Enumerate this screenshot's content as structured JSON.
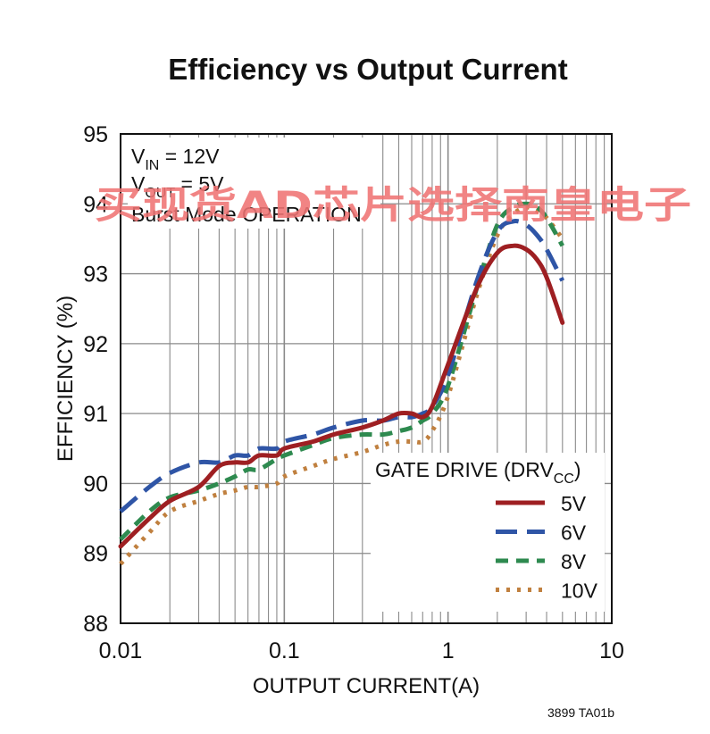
{
  "chart_data": {
    "type": "line",
    "title": "Efficiency vs Output Current",
    "xlabel": "OUTPUT CURRENT(A)",
    "ylabel": "EFFICIENCY (%)",
    "xscale": "log",
    "xlim": [
      0.01,
      10
    ],
    "ylim": [
      88,
      95
    ],
    "x_ticks": [
      "0.01",
      "0.1",
      "1",
      "10"
    ],
    "y_ticks": [
      "88",
      "89",
      "90",
      "91",
      "92",
      "93",
      "94",
      "95"
    ],
    "grid": true,
    "conditions": {
      "vin": {
        "main": "V",
        "sub": "IN",
        "rest": " = 12V"
      },
      "vout": {
        "main": "V",
        "sub": "OUT",
        "rest": " = 5V"
      },
      "mode": "Burst Mode OPERATION"
    },
    "legend": {
      "title_main": "GATE DRIVE (DRV",
      "title_sub": "CC",
      "title_end": ")",
      "placement": "lower-right"
    },
    "series": [
      {
        "name": "5V",
        "color": "#9e1f22",
        "dash": "solid",
        "x": [
          0.01,
          0.015,
          0.02,
          0.03,
          0.04,
          0.05,
          0.06,
          0.07,
          0.09,
          0.1,
          0.15,
          0.2,
          0.3,
          0.4,
          0.5,
          0.6,
          0.7,
          0.8,
          1.0,
          1.5,
          2.0,
          2.5,
          3.0,
          3.5,
          4.0,
          5.0
        ],
        "y": [
          89.1,
          89.5,
          89.75,
          89.95,
          90.25,
          90.3,
          90.3,
          90.4,
          90.4,
          90.5,
          90.6,
          90.7,
          90.8,
          90.9,
          91.0,
          91.0,
          90.95,
          91.1,
          91.7,
          92.8,
          93.3,
          93.4,
          93.35,
          93.2,
          92.95,
          92.3
        ]
      },
      {
        "name": "6V",
        "color": "#2f55a6",
        "dash": "long-dash",
        "x": [
          0.01,
          0.015,
          0.02,
          0.03,
          0.04,
          0.05,
          0.06,
          0.07,
          0.09,
          0.1,
          0.15,
          0.2,
          0.3,
          0.4,
          0.5,
          0.6,
          0.7,
          0.8,
          1.0,
          1.5,
          2.0,
          2.5,
          3.0,
          3.5,
          4.0,
          5.0
        ],
        "y": [
          89.6,
          89.95,
          90.15,
          90.3,
          90.3,
          90.4,
          90.4,
          90.5,
          90.5,
          90.6,
          90.7,
          90.8,
          90.9,
          90.9,
          90.95,
          90.95,
          91.0,
          91.1,
          91.55,
          92.9,
          93.6,
          93.75,
          93.7,
          93.55,
          93.35,
          92.9
        ]
      },
      {
        "name": "8V",
        "color": "#2e8a4f",
        "dash": "medium-dash",
        "x": [
          0.01,
          0.015,
          0.02,
          0.03,
          0.04,
          0.05,
          0.06,
          0.07,
          0.09,
          0.1,
          0.15,
          0.2,
          0.3,
          0.4,
          0.5,
          0.6,
          0.7,
          0.8,
          1.0,
          1.5,
          2.0,
          2.5,
          3.0,
          3.5,
          4.0,
          5.0
        ],
        "y": [
          89.2,
          89.6,
          89.8,
          89.9,
          90.0,
          90.1,
          90.2,
          90.2,
          90.35,
          90.4,
          90.55,
          90.65,
          90.7,
          90.7,
          90.75,
          90.8,
          90.9,
          91.0,
          91.4,
          92.8,
          93.7,
          93.95,
          94.0,
          93.95,
          93.8,
          93.4
        ]
      },
      {
        "name": "10V",
        "color": "#c0803f",
        "dash": "dotted",
        "x": [
          0.01,
          0.015,
          0.02,
          0.03,
          0.04,
          0.05,
          0.06,
          0.07,
          0.09,
          0.1,
          0.15,
          0.2,
          0.3,
          0.4,
          0.5,
          0.6,
          0.7,
          0.8,
          1.0,
          1.5,
          2.0,
          2.5,
          3.0,
          3.5,
          4.0,
          5.0
        ],
        "y": [
          88.85,
          89.3,
          89.6,
          89.75,
          89.85,
          89.9,
          89.95,
          89.95,
          90.0,
          90.1,
          90.25,
          90.35,
          90.45,
          90.55,
          90.6,
          90.6,
          90.6,
          90.75,
          91.25,
          92.7,
          93.55,
          93.85,
          93.95,
          93.9,
          93.8,
          93.5
        ]
      }
    ]
  },
  "figure_code": "3899 TA01b",
  "watermark": "买现货AD芯片选择南皇电子"
}
